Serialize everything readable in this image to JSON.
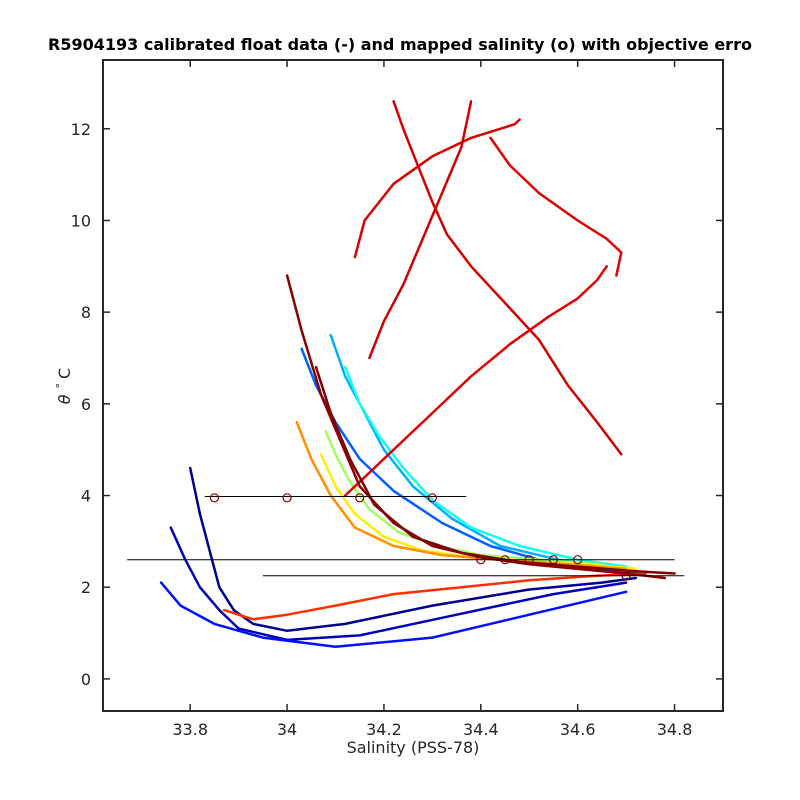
{
  "chart_data": {
    "type": "line",
    "title": "R5904193 calibrated float data (-) and mapped salinity (o) with objective erro",
    "xlabel": "Salinity (PSS-78)",
    "ylabel_parts": [
      "θ",
      "°",
      "C"
    ],
    "xlim": [
      33.62,
      34.9
    ],
    "ylim": [
      -0.7,
      13.5
    ],
    "xticks": [
      33.8,
      34,
      34.2,
      34.4,
      34.6,
      34.8
    ],
    "xtick_labels": [
      "33.8",
      "34",
      "34.2",
      "34.4",
      "34.6",
      "34.8"
    ],
    "yticks": [
      0,
      2,
      4,
      6,
      8,
      10,
      12
    ],
    "ytick_labels": [
      "0",
      "2",
      "4",
      "6",
      "8",
      "10",
      "12"
    ],
    "grid": false,
    "legend": "none",
    "colormap": "jet",
    "series": [
      {
        "color": "#00008f",
        "x": [
          33.8,
          33.82,
          33.84,
          33.86,
          33.89,
          33.93,
          34.0,
          34.12,
          34.3,
          34.5,
          34.65,
          34.72
        ],
        "y": [
          4.6,
          3.6,
          2.8,
          2.0,
          1.5,
          1.2,
          1.05,
          1.2,
          1.6,
          1.95,
          2.1,
          2.2
        ]
      },
      {
        "color": "#0000b8",
        "x": [
          33.76,
          33.79,
          33.82,
          33.86,
          33.9,
          34.0,
          34.15,
          34.35,
          34.55,
          34.7
        ],
        "y": [
          3.3,
          2.6,
          2.0,
          1.5,
          1.1,
          0.85,
          0.95,
          1.4,
          1.85,
          2.1
        ]
      },
      {
        "color": "#0010ff",
        "x": [
          33.74,
          33.78,
          33.85,
          33.95,
          34.1,
          34.3,
          34.5,
          34.7
        ],
        "y": [
          2.1,
          1.6,
          1.2,
          0.9,
          0.7,
          0.9,
          1.4,
          1.9
        ]
      },
      {
        "color": "#0060ff",
        "x": [
          34.03,
          34.06,
          34.1,
          34.15,
          34.22,
          34.32,
          34.42,
          34.52,
          34.62,
          34.72
        ],
        "y": [
          7.2,
          6.4,
          5.6,
          4.8,
          4.1,
          3.4,
          2.9,
          2.6,
          2.4,
          2.3
        ]
      },
      {
        "color": "#00b0ff",
        "x": [
          34.09,
          34.12,
          34.16,
          34.2,
          34.26,
          34.34,
          34.44,
          34.56,
          34.68
        ],
        "y": [
          7.5,
          6.6,
          5.8,
          5.0,
          4.2,
          3.5,
          2.9,
          2.6,
          2.4
        ]
      },
      {
        "color": "#10ffef",
        "x": [
          34.12,
          34.15,
          34.19,
          34.24,
          34.3,
          34.38,
          34.48,
          34.6,
          34.7
        ],
        "y": [
          6.8,
          6.0,
          5.3,
          4.6,
          3.9,
          3.3,
          2.9,
          2.6,
          2.45
        ]
      },
      {
        "color": "#a0ff60",
        "x": [
          34.08,
          34.1,
          34.13,
          34.17,
          34.23,
          34.31,
          34.4,
          34.52,
          34.65
        ],
        "y": [
          5.4,
          4.9,
          4.3,
          3.7,
          3.2,
          2.9,
          2.7,
          2.6,
          2.5
        ]
      },
      {
        "color": "#ffef00",
        "x": [
          34.07,
          34.1,
          34.14,
          34.2,
          34.28,
          34.38,
          34.5,
          34.62,
          34.72
        ],
        "y": [
          4.9,
          4.2,
          3.6,
          3.1,
          2.8,
          2.65,
          2.55,
          2.5,
          2.4
        ]
      },
      {
        "color": "#ff9000",
        "x": [
          34.02,
          34.05,
          34.09,
          34.14,
          34.22,
          34.32,
          34.44,
          34.58,
          34.7
        ],
        "y": [
          5.6,
          4.8,
          4.0,
          3.3,
          2.9,
          2.7,
          2.6,
          2.5,
          2.4
        ]
      },
      {
        "color": "#ff3000",
        "x": [
          33.87,
          33.93,
          34.0,
          34.1,
          34.22,
          34.36,
          34.5,
          34.64,
          34.74
        ],
        "y": [
          1.5,
          1.3,
          1.4,
          1.6,
          1.85,
          2.0,
          2.15,
          2.25,
          2.3
        ]
      },
      {
        "color": "#df0000",
        "x": [
          34.12,
          34.16,
          34.22,
          34.3,
          34.38,
          34.46,
          34.54,
          34.6,
          34.64,
          34.66
        ],
        "y": [
          4.0,
          4.4,
          5.0,
          5.8,
          6.6,
          7.3,
          7.9,
          8.3,
          8.7,
          9.0
        ]
      },
      {
        "color": "#cf0000",
        "x": [
          34.22,
          34.24,
          34.27,
          34.3,
          34.33,
          34.38,
          34.45,
          34.52,
          34.58,
          34.64,
          34.69
        ],
        "y": [
          12.6,
          12.0,
          11.2,
          10.4,
          9.7,
          9.0,
          8.2,
          7.4,
          6.4,
          5.6,
          4.9
        ]
      },
      {
        "color": "#e00000",
        "x": [
          34.42,
          34.46,
          34.52,
          34.6,
          34.66,
          34.69,
          34.68
        ],
        "y": [
          11.8,
          11.2,
          10.6,
          10.0,
          9.6,
          9.3,
          8.8
        ]
      },
      {
        "color": "#d80000",
        "x": [
          34.14,
          34.16,
          34.22,
          34.3,
          34.38,
          34.44,
          34.47,
          34.48
        ],
        "y": [
          9.2,
          10.0,
          10.8,
          11.4,
          11.8,
          12.0,
          12.1,
          12.2
        ]
      },
      {
        "color": "#d00000",
        "x": [
          34.38,
          34.36,
          34.32,
          34.28,
          34.24,
          34.2,
          34.17
        ],
        "y": [
          12.6,
          11.6,
          10.6,
          9.6,
          8.6,
          7.8,
          7.0
        ]
      },
      {
        "color": "#8b0000",
        "x": [
          34.0,
          34.03,
          34.07,
          34.11,
          34.15,
          34.22,
          34.3,
          34.4,
          34.5,
          34.6,
          34.7,
          34.78
        ],
        "y": [
          8.8,
          7.6,
          6.2,
          5.2,
          4.2,
          3.4,
          2.9,
          2.65,
          2.5,
          2.4,
          2.3,
          2.2
        ]
      },
      {
        "color": "#7f0000",
        "x": [
          34.06,
          34.09,
          34.13,
          34.18,
          34.26,
          34.36,
          34.48,
          34.6,
          34.72,
          34.8
        ],
        "y": [
          6.8,
          5.8,
          4.8,
          3.8,
          3.1,
          2.75,
          2.55,
          2.45,
          2.35,
          2.3
        ]
      }
    ],
    "mapped_salinity_series": {
      "marker": "o",
      "color": "#8b0000",
      "x": [
        33.85,
        34.0,
        34.15,
        34.3,
        34.4,
        34.45,
        34.5,
        34.55,
        34.6,
        34.7
      ],
      "y": [
        3.95,
        3.95,
        3.95,
        3.95,
        2.6,
        2.6,
        2.6,
        2.6,
        2.6,
        2.25
      ]
    },
    "objective_error_bars": [
      {
        "x_range": [
          33.83,
          34.37
        ],
        "y": 3.98,
        "color": "#000000"
      },
      {
        "x_range": [
          33.67,
          34.8
        ],
        "y": 2.6,
        "color": "#000000"
      },
      {
        "x_range": [
          33.95,
          34.82
        ],
        "y": 2.25,
        "color": "#000000"
      }
    ]
  }
}
